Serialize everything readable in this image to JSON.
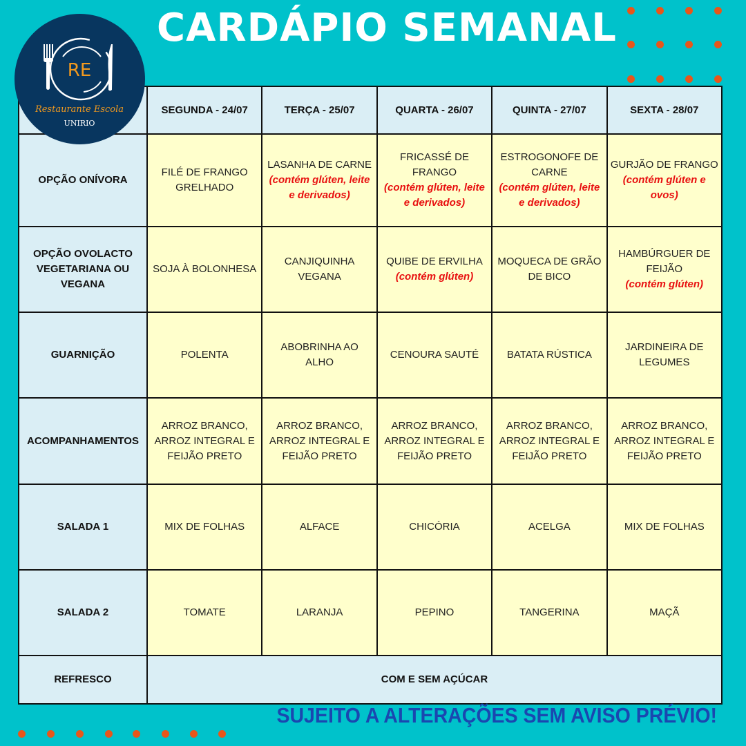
{
  "title": "CARDÁPIO SEMANAL",
  "logo": {
    "monogram": "RE",
    "name": "Restaurante Escola",
    "org": "UNIRIO"
  },
  "colors": {
    "background": "#00c2cb",
    "header_cell": "#daeef5",
    "content_cell": "#ffffcc",
    "allergen_note": "#e81010",
    "footer": "#1a47b0",
    "dots": "#e8561a",
    "logo_bg": "#08365f"
  },
  "days": [
    "SEGUNDA - 24/07",
    "TERÇA - 25/07",
    "QUARTA - 26/07",
    "QUINTA - 27/07",
    "SEXTA - 28/07"
  ],
  "rows": [
    {
      "label": "OPÇÃO ONÍVORA",
      "cells": [
        {
          "text": "FILÉ DE FRANGO GRELHADO",
          "note": ""
        },
        {
          "text": "LASANHA DE CARNE",
          "note": "(contém glúten, leite e derivados)"
        },
        {
          "text": "FRICASSÉ DE FRANGO",
          "note": "(contém glúten, leite e derivados)"
        },
        {
          "text": "ESTROGONOFE DE CARNE",
          "note": "(contém glúten, leite e derivados)"
        },
        {
          "text": "GURJÃO DE FRANGO",
          "note": "(contém glúten e ovos)"
        }
      ]
    },
    {
      "label": "OPÇÃO OVOLACTO VEGETARIANA OU VEGANA",
      "cells": [
        {
          "text": "SOJA À BOLONHESA",
          "note": ""
        },
        {
          "text": "CANJIQUINHA VEGANA",
          "note": ""
        },
        {
          "text": "QUIBE DE ERVILHA",
          "note": "(contém glúten)"
        },
        {
          "text": "MOQUECA DE GRÃO DE BICO",
          "note": ""
        },
        {
          "text": "HAMBÚRGUER DE FEIJÃO",
          "note": "(contém glúten)"
        }
      ]
    },
    {
      "label": "GUARNIÇÃO",
      "cells": [
        {
          "text": "POLENTA",
          "note": ""
        },
        {
          "text": "ABOBRINHA AO ALHO",
          "note": ""
        },
        {
          "text": "CENOURA SAUTÉ",
          "note": ""
        },
        {
          "text": "BATATA RÚSTICA",
          "note": ""
        },
        {
          "text": "JARDINEIRA DE LEGUMES",
          "note": ""
        }
      ]
    },
    {
      "label": "ACOMPANHAMENTOS",
      "cells": [
        {
          "text": "ARROZ BRANCO, ARROZ INTEGRAL E FEIJÃO PRETO",
          "note": ""
        },
        {
          "text": "ARROZ BRANCO, ARROZ INTEGRAL E FEIJÃO PRETO",
          "note": ""
        },
        {
          "text": "ARROZ BRANCO, ARROZ INTEGRAL E FEIJÃO PRETO",
          "note": ""
        },
        {
          "text": "ARROZ BRANCO, ARROZ INTEGRAL E FEIJÃO PRETO",
          "note": ""
        },
        {
          "text": "ARROZ BRANCO, ARROZ INTEGRAL E FEIJÃO PRETO",
          "note": ""
        }
      ]
    },
    {
      "label": "SALADA 1",
      "cells": [
        {
          "text": "MIX DE FOLHAS",
          "note": ""
        },
        {
          "text": "ALFACE",
          "note": ""
        },
        {
          "text": "CHICÓRIA",
          "note": ""
        },
        {
          "text": "ACELGA",
          "note": ""
        },
        {
          "text": "MIX DE FOLHAS",
          "note": ""
        }
      ]
    },
    {
      "label": "SALADA 2",
      "cells": [
        {
          "text": "TOMATE",
          "note": ""
        },
        {
          "text": "LARANJA",
          "note": ""
        },
        {
          "text": "PEPINO",
          "note": ""
        },
        {
          "text": "TANGERINA",
          "note": ""
        },
        {
          "text": "MAÇÃ",
          "note": ""
        }
      ]
    }
  ],
  "refresco": {
    "label": "REFRESCO",
    "value": "COM E SEM AÇÚCAR"
  },
  "footer": "SUJEITO A ALTERAÇÕES SEM AVISO PRÉVIO!"
}
